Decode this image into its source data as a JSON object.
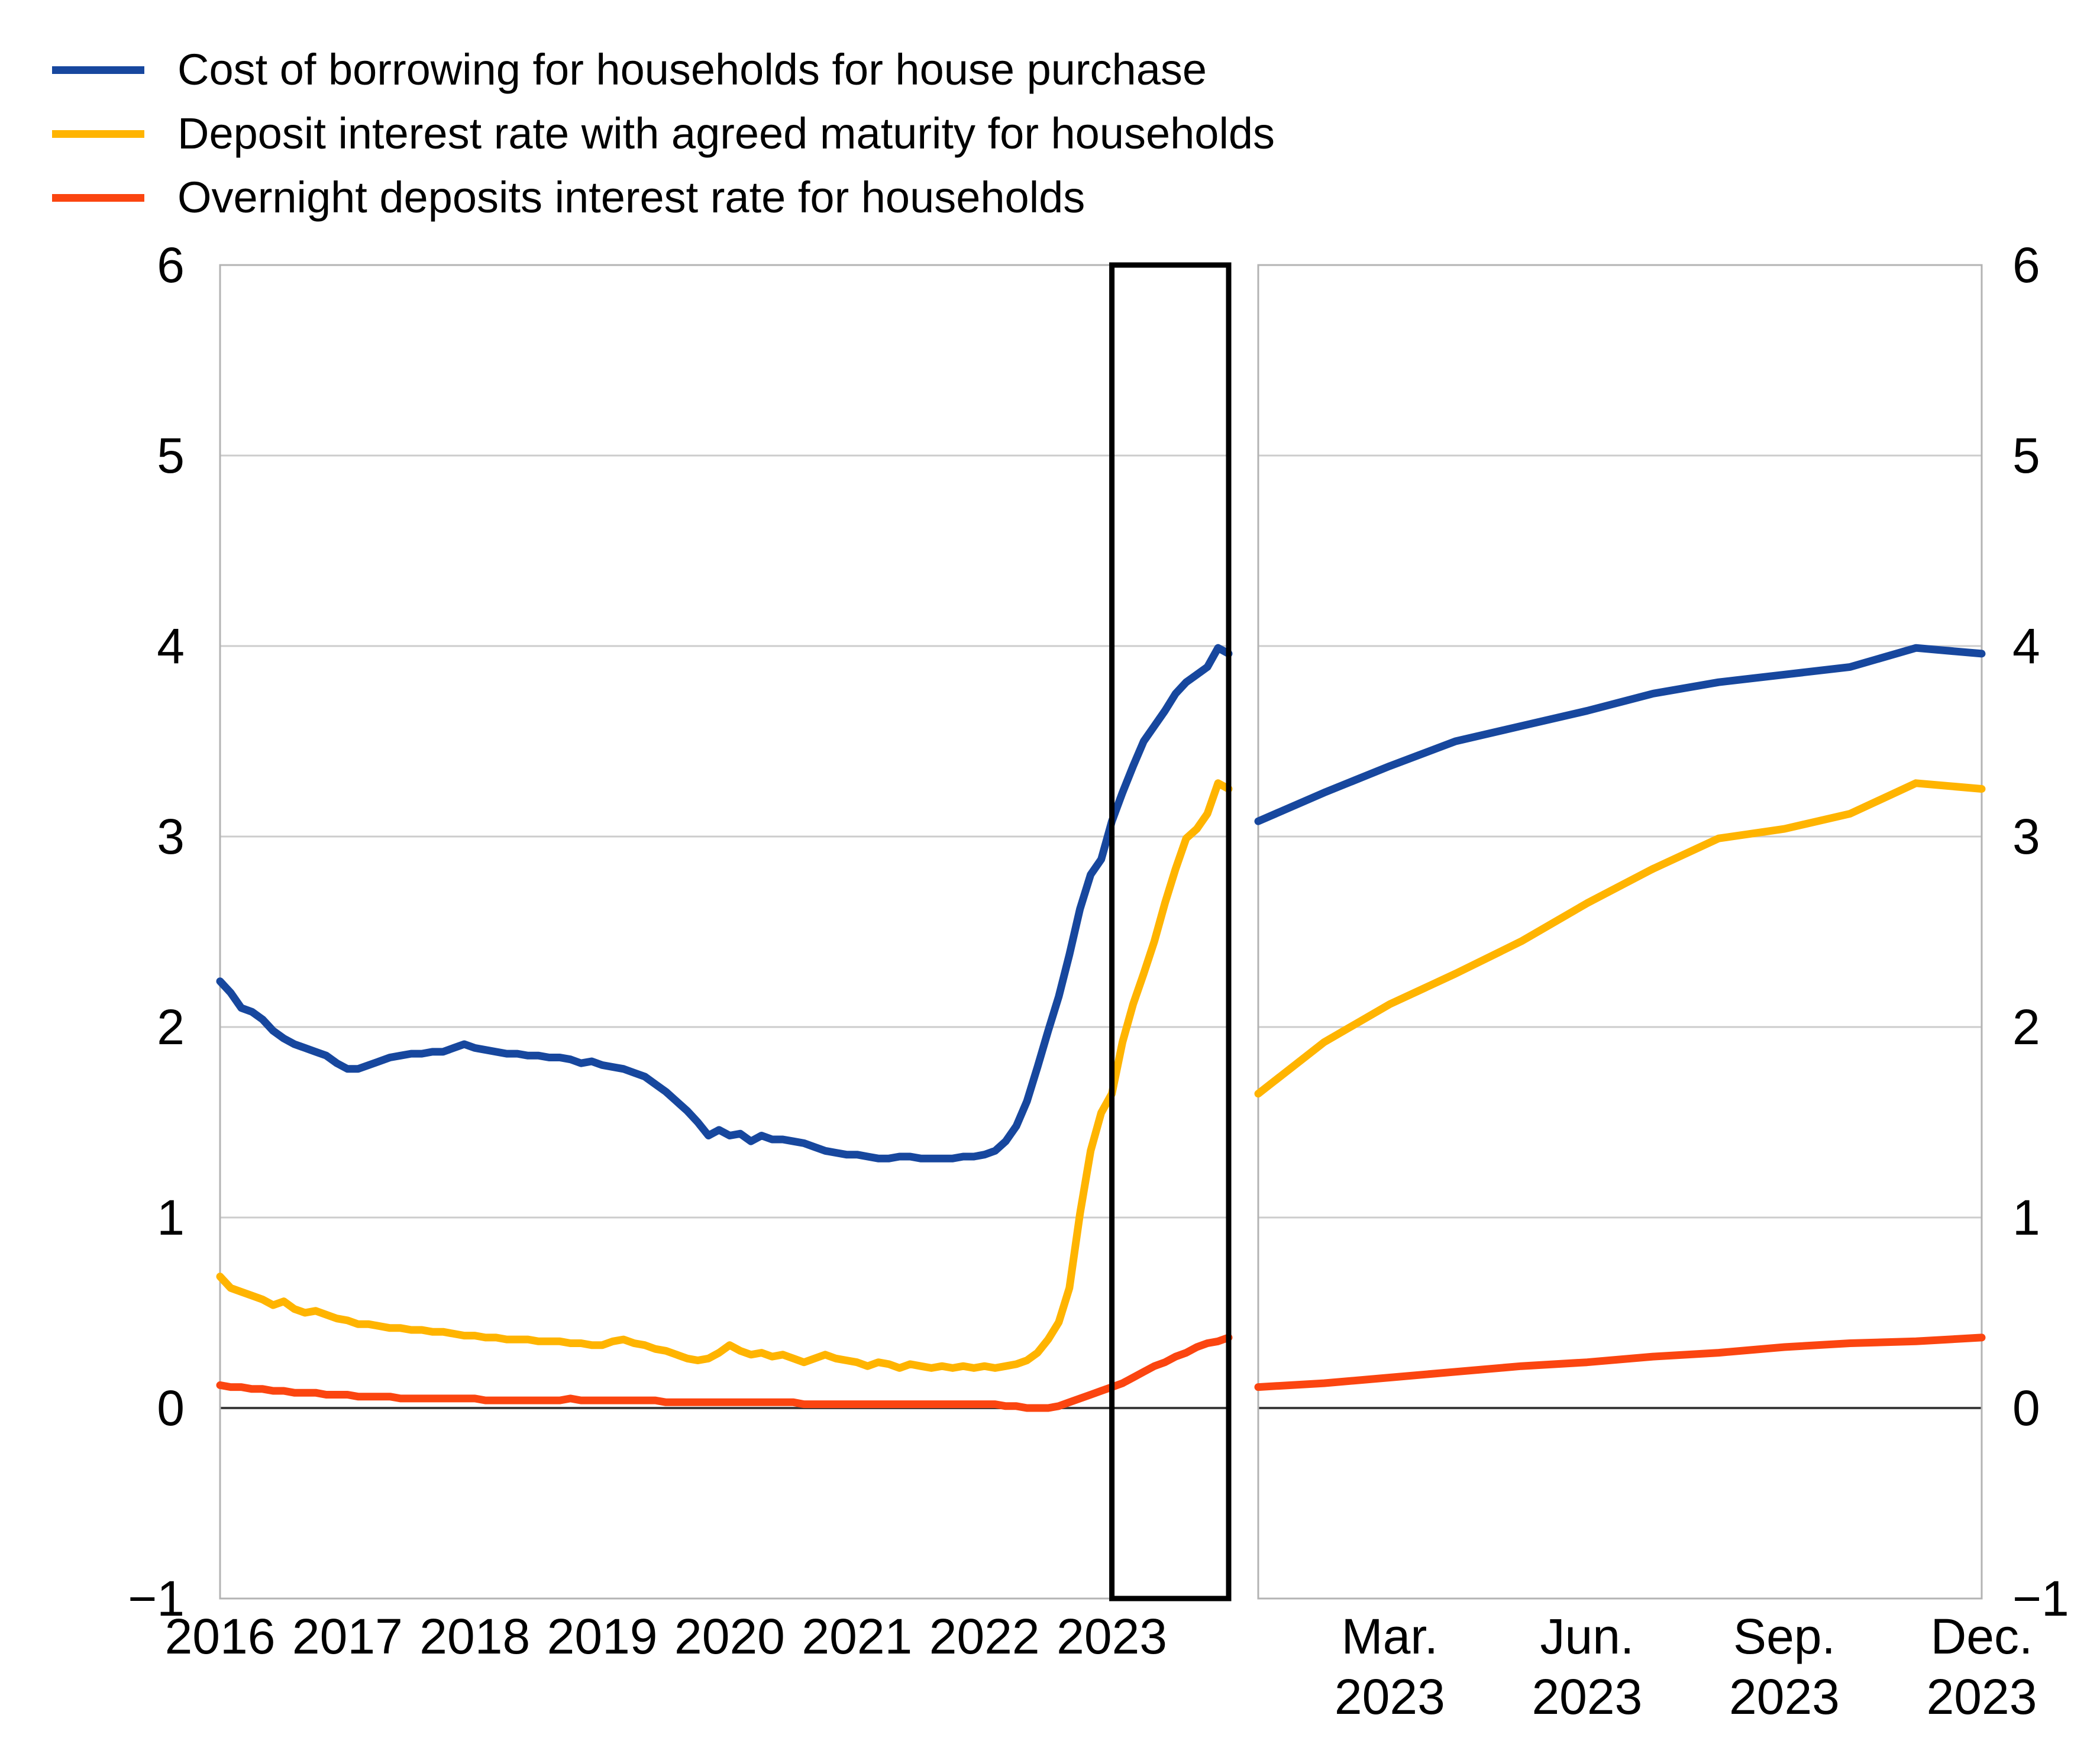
{
  "legend": {
    "items": [
      {
        "id": "cost-of-borrowing",
        "label": "Cost of borrowing for households for house purchase",
        "color": "#17479E"
      },
      {
        "id": "deposit-agreed-maturity",
        "label": "Deposit interest rate with agreed maturity for households",
        "color": "#FFB400"
      },
      {
        "id": "overnight-deposits",
        "label": "Overnight deposits interest rate for households",
        "color": "#FB4510"
      }
    ]
  },
  "chart_data": {
    "type": "line",
    "title": "",
    "grid": true,
    "background_color": "#FFFFFF",
    "grid_color": "#CCCCCC",
    "zero_line_color": "#3D3D3D",
    "panel_border_color": "#B3B3B3",
    "highlight_box_color": "#000000",
    "ylim": [
      -1,
      6
    ],
    "y_ticks": [
      6,
      5,
      4,
      3,
      2,
      1,
      0,
      -1
    ],
    "y_tick_labels": [
      "6",
      "5",
      "4",
      "3",
      "2",
      "1",
      "0",
      "−1"
    ],
    "y_axis_sides": [
      "left",
      "right"
    ],
    "panels": [
      {
        "id": "history-panel",
        "x_start": "2016-01",
        "x_end": "2023-12",
        "x_tick_labels": [
          "2016",
          "2017",
          "2018",
          "2019",
          "2020",
          "2021",
          "2022",
          "2023"
        ],
        "highlight_box_from": "2023-01",
        "highlight_box_to": "2023-12"
      },
      {
        "id": "zoom-2023-panel",
        "x_start": "2023-01",
        "x_end": "2023-12",
        "x_tick_months": [
          3,
          6,
          9,
          12
        ],
        "x_tick_labels": [
          [
            "Mar.",
            "2023"
          ],
          [
            "Jun.",
            "2023"
          ],
          [
            "Sep.",
            "2023"
          ],
          [
            "Dec.",
            "2023"
          ]
        ]
      }
    ],
    "series": [
      {
        "name": "Cost of borrowing for households for house purchase",
        "color": "#17479E",
        "monthly_values_2016_2023": [
          2.24,
          2.18,
          2.1,
          2.08,
          2.04,
          1.98,
          1.94,
          1.91,
          1.89,
          1.87,
          1.85,
          1.81,
          1.78,
          1.78,
          1.8,
          1.82,
          1.84,
          1.85,
          1.86,
          1.86,
          1.87,
          1.87,
          1.89,
          1.91,
          1.89,
          1.88,
          1.87,
          1.86,
          1.86,
          1.85,
          1.85,
          1.84,
          1.84,
          1.83,
          1.81,
          1.82,
          1.8,
          1.79,
          1.78,
          1.76,
          1.74,
          1.7,
          1.66,
          1.61,
          1.56,
          1.5,
          1.43,
          1.46,
          1.43,
          1.44,
          1.4,
          1.43,
          1.41,
          1.41,
          1.4,
          1.39,
          1.37,
          1.35,
          1.34,
          1.33,
          1.33,
          1.32,
          1.31,
          1.31,
          1.32,
          1.32,
          1.31,
          1.31,
          1.31,
          1.31,
          1.32,
          1.32,
          1.33,
          1.35,
          1.4,
          1.48,
          1.61,
          1.79,
          1.98,
          2.16,
          2.38,
          2.62,
          2.8,
          2.88,
          3.08,
          3.23,
          3.37,
          3.5,
          3.58,
          3.66,
          3.75,
          3.81,
          3.85,
          3.89,
          3.99,
          3.96
        ]
      },
      {
        "name": "Deposit interest rate with agreed maturity for households",
        "color": "#FFB400",
        "monthly_values_2016_2023": [
          0.69,
          0.63,
          0.61,
          0.59,
          0.57,
          0.54,
          0.56,
          0.52,
          0.5,
          0.51,
          0.49,
          0.47,
          0.46,
          0.44,
          0.44,
          0.43,
          0.42,
          0.42,
          0.41,
          0.41,
          0.4,
          0.4,
          0.39,
          0.38,
          0.38,
          0.37,
          0.37,
          0.36,
          0.36,
          0.36,
          0.35,
          0.35,
          0.35,
          0.34,
          0.34,
          0.33,
          0.33,
          0.35,
          0.36,
          0.34,
          0.33,
          0.31,
          0.3,
          0.28,
          0.26,
          0.25,
          0.26,
          0.29,
          0.33,
          0.3,
          0.28,
          0.29,
          0.27,
          0.28,
          0.26,
          0.24,
          0.26,
          0.28,
          0.26,
          0.25,
          0.24,
          0.22,
          0.24,
          0.23,
          0.21,
          0.23,
          0.22,
          0.21,
          0.22,
          0.21,
          0.22,
          0.21,
          0.22,
          0.21,
          0.22,
          0.23,
          0.25,
          0.29,
          0.36,
          0.45,
          0.63,
          1.02,
          1.35,
          1.55,
          1.65,
          1.92,
          2.12,
          2.28,
          2.45,
          2.65,
          2.83,
          2.99,
          3.04,
          3.12,
          3.28,
          3.25
        ]
      },
      {
        "name": "Overnight deposits interest rate for households",
        "color": "#FB4510",
        "monthly_values_2016_2023": [
          0.12,
          0.11,
          0.11,
          0.1,
          0.1,
          0.09,
          0.09,
          0.08,
          0.08,
          0.08,
          0.07,
          0.07,
          0.07,
          0.06,
          0.06,
          0.06,
          0.06,
          0.05,
          0.05,
          0.05,
          0.05,
          0.05,
          0.05,
          0.05,
          0.05,
          0.04,
          0.04,
          0.04,
          0.04,
          0.04,
          0.04,
          0.04,
          0.04,
          0.05,
          0.04,
          0.04,
          0.04,
          0.04,
          0.04,
          0.04,
          0.04,
          0.04,
          0.03,
          0.03,
          0.03,
          0.03,
          0.03,
          0.03,
          0.03,
          0.03,
          0.03,
          0.03,
          0.03,
          0.03,
          0.03,
          0.02,
          0.02,
          0.02,
          0.02,
          0.02,
          0.02,
          0.02,
          0.02,
          0.02,
          0.02,
          0.02,
          0.02,
          0.02,
          0.02,
          0.02,
          0.02,
          0.02,
          0.02,
          0.02,
          0.01,
          0.01,
          0.0,
          0.0,
          0.0,
          0.01,
          0.03,
          0.05,
          0.07,
          0.09,
          0.11,
          0.13,
          0.16,
          0.19,
          0.22,
          0.24,
          0.27,
          0.29,
          0.32,
          0.34,
          0.35,
          0.37
        ]
      }
    ]
  }
}
